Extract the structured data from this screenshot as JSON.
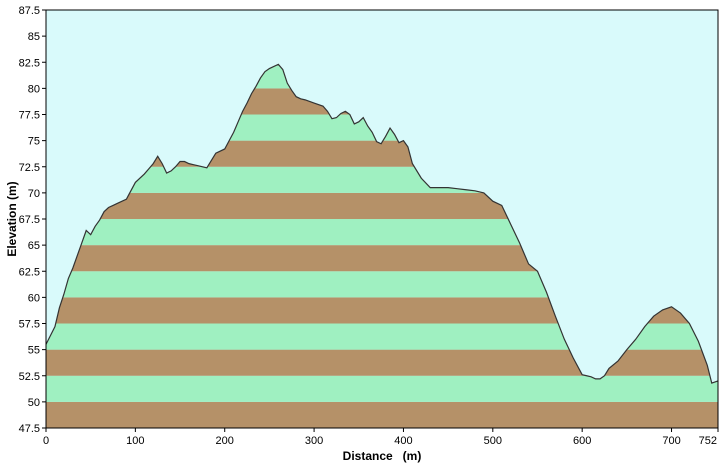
{
  "chart_data": {
    "type": "area",
    "title": "",
    "xlabel": "Distance   (m)",
    "ylabel": "Elevation (m)",
    "xlim": [
      0,
      752
    ],
    "ylim": [
      47.5,
      87.5
    ],
    "x_ticks": [
      "0",
      "100",
      "200",
      "300",
      "400",
      "500",
      "600",
      "700",
      "752"
    ],
    "y_ticks": [
      "47.5",
      "50",
      "52.5",
      "55",
      "57.5",
      "60",
      "62.5",
      "65",
      "67.5",
      "70",
      "72.5",
      "75",
      "77.5",
      "80",
      "82.5",
      "85",
      "87.5"
    ],
    "grid": false,
    "legend": "none",
    "colors": {
      "background": "#d9fafb",
      "band_light": "#9ff0c1",
      "band_dark": "#b59168",
      "outline": "#333333"
    },
    "series": [
      {
        "x": [
          0,
          10,
          15,
          20,
          25,
          30,
          35,
          40,
          45,
          50,
          55,
          60,
          65,
          70,
          75,
          80,
          90,
          100,
          110,
          115,
          120,
          125,
          130,
          135,
          140,
          145,
          150,
          155,
          160,
          165,
          170,
          180,
          190,
          200,
          205,
          210,
          215,
          220,
          225,
          230,
          235,
          240,
          245,
          250,
          255,
          260,
          265,
          270,
          275,
          280,
          285,
          290,
          300,
          310,
          315,
          320,
          325,
          330,
          335,
          340,
          345,
          350,
          355,
          360,
          365,
          370,
          375,
          380,
          385,
          390,
          395,
          400,
          405,
          410,
          420,
          430,
          440,
          450,
          460,
          470,
          480,
          490,
          500,
          510,
          520,
          530,
          540,
          550,
          560,
          570,
          580,
          590,
          600,
          605,
          610,
          615,
          620,
          625,
          630,
          640,
          650,
          660,
          670,
          680,
          690,
          700,
          710,
          720,
          730,
          740,
          745,
          752
        ],
        "y": [
          55.5,
          57.2,
          59.0,
          60.3,
          61.8,
          62.8,
          64.0,
          65.2,
          66.4,
          66.0,
          66.8,
          67.4,
          68.2,
          68.6,
          68.8,
          69.0,
          69.4,
          71.0,
          71.8,
          72.3,
          72.8,
          73.5,
          72.8,
          71.9,
          72.1,
          72.5,
          73.0,
          73.0,
          72.8,
          72.7,
          72.6,
          72.4,
          73.8,
          74.2,
          75.0,
          75.8,
          76.8,
          77.8,
          78.6,
          79.5,
          80.2,
          81.0,
          81.6,
          81.9,
          82.1,
          82.3,
          81.8,
          80.5,
          79.8,
          79.2,
          79.0,
          78.9,
          78.6,
          78.3,
          77.8,
          77.1,
          77.2,
          77.6,
          77.8,
          77.5,
          76.6,
          76.8,
          77.2,
          76.4,
          75.8,
          74.9,
          74.7,
          75.4,
          76.2,
          75.6,
          74.8,
          75.0,
          74.4,
          72.8,
          71.4,
          70.5,
          70.5,
          70.5,
          70.4,
          70.3,
          70.2,
          70.0,
          69.2,
          68.8,
          67.0,
          65.2,
          63.2,
          62.5,
          60.5,
          58.2,
          56.0,
          54.2,
          52.6,
          52.5,
          52.4,
          52.2,
          52.2,
          52.5,
          53.2,
          53.9,
          55.0,
          56.0,
          57.2,
          58.2,
          58.8,
          59.1,
          58.5,
          57.5,
          55.8,
          53.5,
          51.8,
          52.0
        ]
      }
    ]
  }
}
